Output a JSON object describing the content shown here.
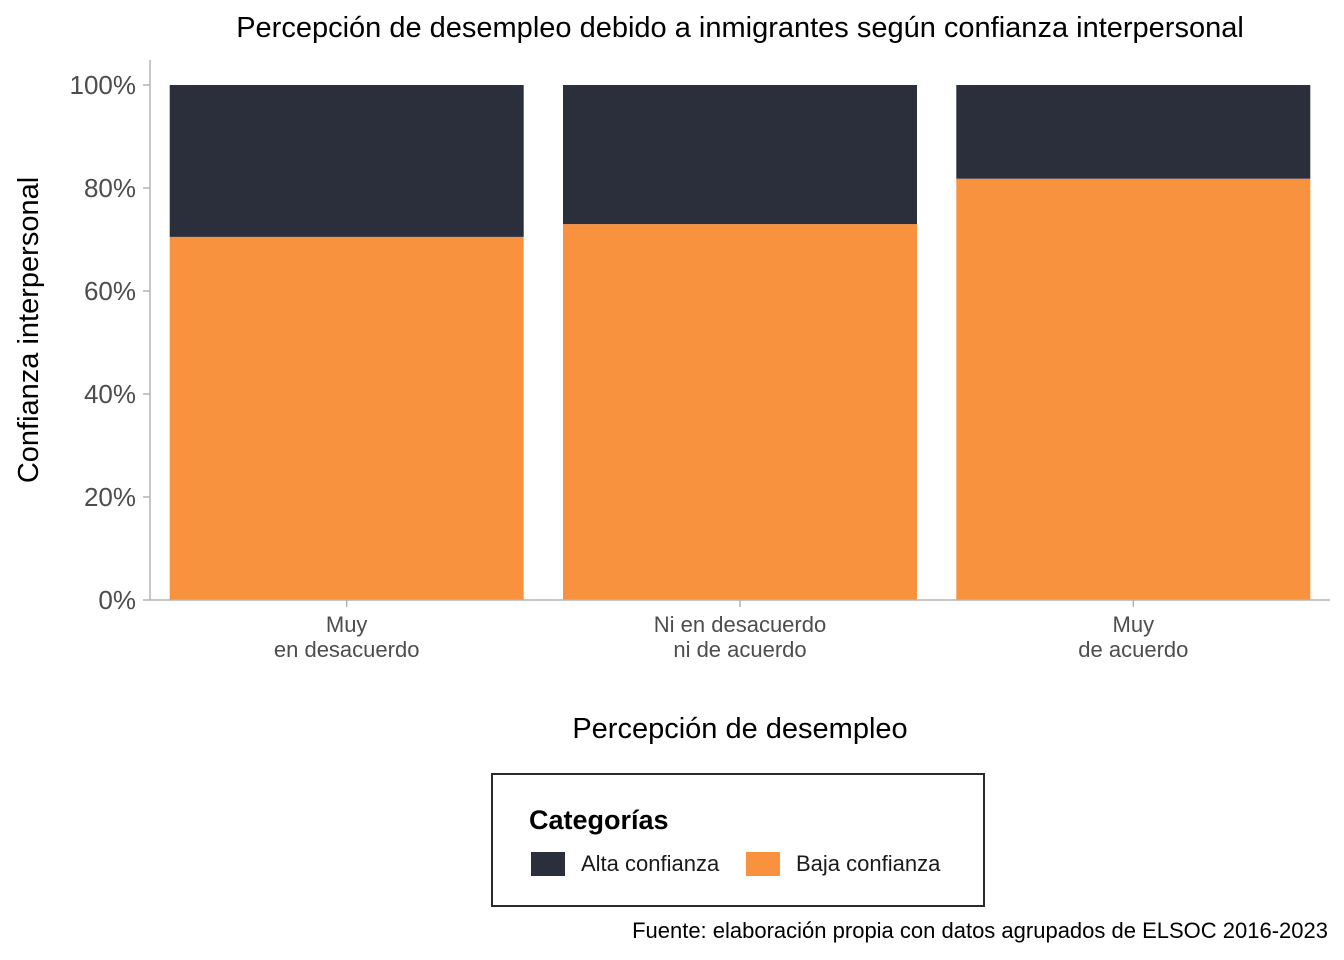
{
  "chart_data": {
    "type": "bar",
    "stacked": true,
    "title": "Percepción de desempleo debido a inmigrantes según confianza interpersonal",
    "xlabel": "Percepción de desempleo",
    "ylabel": "Confianza interpersonal",
    "categories": [
      [
        "Muy",
        "en desacuerdo"
      ],
      [
        "Ni en desacuerdo",
        "ni de acuerdo"
      ],
      [
        "Muy",
        "de acuerdo"
      ]
    ],
    "ylim": [
      0,
      100
    ],
    "yticks": [
      "0%",
      "20%",
      "40%",
      "60%",
      "80%",
      "100%"
    ],
    "ytick_values": [
      0,
      20,
      40,
      60,
      80,
      100
    ],
    "grid": false,
    "series": [
      {
        "name": "Baja confianza",
        "color": "#f8923f",
        "values": [
          70.5,
          73.0,
          81.8
        ]
      },
      {
        "name": "Alta confianza",
        "color": "#2b2f3c",
        "values": [
          29.5,
          27.0,
          18.2
        ]
      }
    ],
    "legend_order": [
      1,
      0
    ],
    "legend_placement": "bottom"
  },
  "legend": {
    "title": "Categorías",
    "items": [
      {
        "label": "Alta confianza",
        "color": "#2b2f3c"
      },
      {
        "label": "Baja confianza",
        "color": "#f8923f"
      }
    ]
  },
  "caption": "Fuente: elaboración propia con datos agrupados de ELSOC 2016-2023"
}
